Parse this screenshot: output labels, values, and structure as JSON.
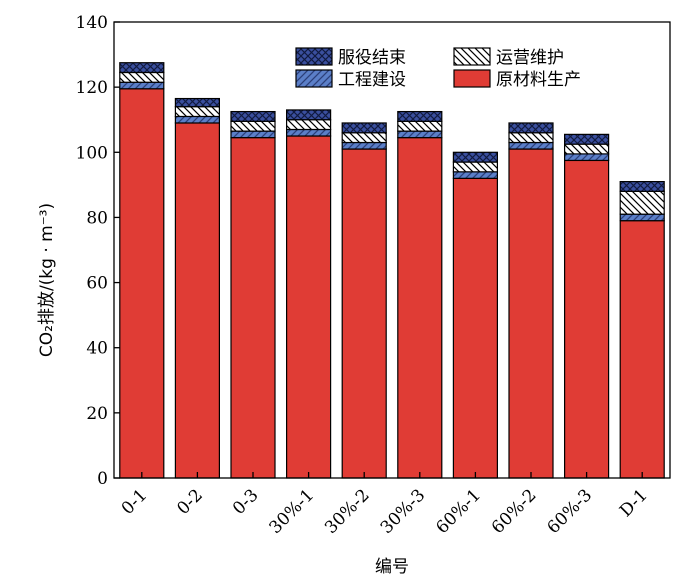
{
  "chart_data": {
    "type": "bar",
    "stacked": true,
    "categories": [
      "0-1",
      "0-2",
      "0-3",
      "30%-1",
      "30%-2",
      "30%-3",
      "60%-1",
      "60%-2",
      "60%-3",
      "D-1"
    ],
    "series": [
      {
        "name": "原材料生产",
        "color": "#e03c35",
        "pattern": "solid",
        "values": [
          119.5,
          109,
          104.5,
          105,
          101,
          104.5,
          92,
          101,
          97.5,
          79
        ]
      },
      {
        "name": "工程建设",
        "color": "#5b7fc8",
        "pattern": "forward-hatch",
        "values": [
          2,
          2,
          2,
          2,
          2,
          2,
          2,
          2,
          2,
          2
        ]
      },
      {
        "name": "运营维护",
        "color": "#ffffff",
        "pattern": "back-hatch",
        "values": [
          3,
          3,
          3,
          3,
          3,
          3,
          3,
          3,
          3,
          7
        ]
      },
      {
        "name": "服役结束",
        "color": "#3a4f9e",
        "pattern": "cross-hatch",
        "values": [
          3,
          2.5,
          3,
          3,
          3,
          3,
          3,
          3,
          3,
          3
        ]
      }
    ],
    "ylim": [
      0,
      140
    ],
    "yticks": [
      0,
      20,
      40,
      60,
      80,
      100,
      120,
      140
    ],
    "ylabel": "CO₂排放/(kg · m⁻³)",
    "xlabel": "编号",
    "legend_position": "top-right",
    "grid": false
  }
}
